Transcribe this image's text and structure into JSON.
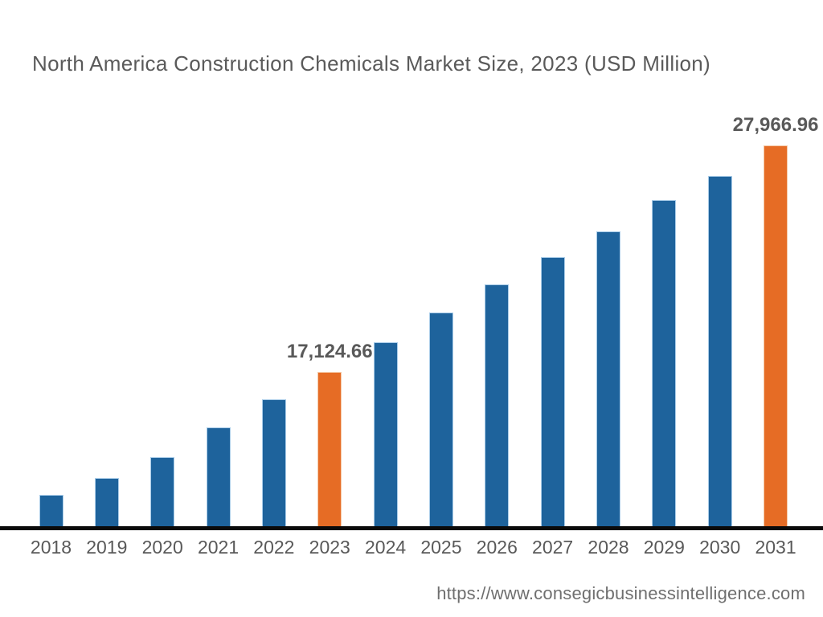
{
  "chart_data": {
    "type": "bar",
    "title": "North America Construction Chemicals Market Size, 2023 (USD Million)",
    "categories": [
      "2018",
      "2019",
      "2020",
      "2021",
      "2022",
      "2023",
      "2024",
      "2025",
      "2026",
      "2027",
      "2028",
      "2029",
      "2030",
      "2031"
    ],
    "values": [
      11240,
      12050,
      13050,
      14470,
      15820,
      17124.66,
      18550,
      19970,
      21320,
      22620,
      23850,
      25350,
      26510,
      27966.96
    ],
    "data_labels": {
      "2023": "17,124.66",
      "2031": "27,966.96"
    },
    "highlighted_categories": [
      "2023",
      "2031"
    ],
    "ylim": [
      9700,
      30080
    ],
    "grid": false,
    "legend": "none",
    "xlabel": "",
    "ylabel": "",
    "colors": {
      "bar": "#1E639C",
      "bar_border": "#A9CCE8",
      "highlight": "#E66C25",
      "highlight_border": "#F5C9A6",
      "axis_line": "#0A0A0A",
      "title_text": "#5A5A5A",
      "label_text": "#595959",
      "tick_text": "#595959",
      "url_text": "#6F6F6F"
    }
  },
  "footer": {
    "url": "https://www.consegicbusinessintelligence.com"
  }
}
